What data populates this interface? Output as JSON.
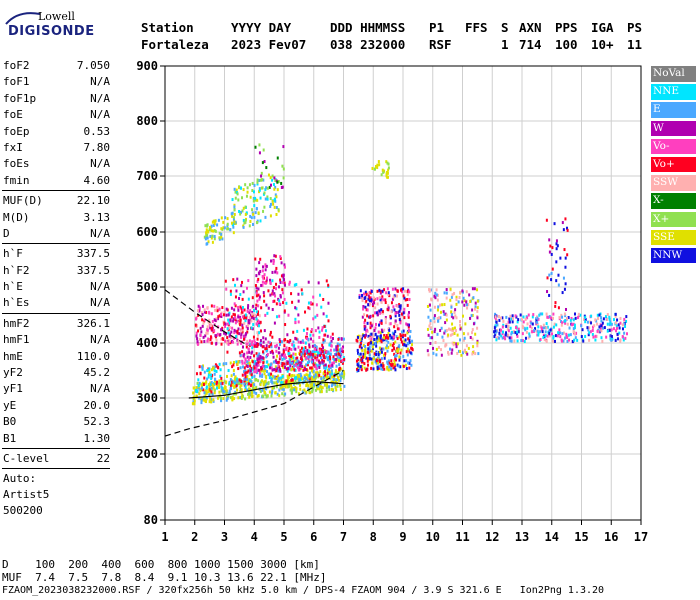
{
  "logo": {
    "top": "Lowell",
    "main": "DIGISONDE"
  },
  "header": {
    "row1": [
      "Station",
      "YYYY DAY",
      "DDD HHMMSS",
      "P1",
      "FFS",
      "S",
      "AXN",
      "PPS",
      "IGA",
      "PS"
    ],
    "row2": [
      "Fortaleza",
      "2023 Fev07",
      "038 232000",
      "RSF",
      "1",
      "714",
      "100",
      "10+",
      "11"
    ]
  },
  "params_group1": [
    {
      "label": "foF2",
      "value": "7.050"
    },
    {
      "label": "foF1",
      "value": "N/A"
    },
    {
      "label": "foF1p",
      "value": "N/A"
    },
    {
      "label": "foE",
      "value": "N/A"
    },
    {
      "label": "foEp",
      "value": "0.53"
    },
    {
      "label": "fxI",
      "value": "7.80"
    },
    {
      "label": "foEs",
      "value": "N/A"
    },
    {
      "label": "fmin",
      "value": "4.60"
    }
  ],
  "params_group2": [
    {
      "label": "MUF(D)",
      "value": "22.10"
    },
    {
      "label": "M(D)",
      "value": "3.13"
    },
    {
      "label": "D",
      "value": "N/A"
    }
  ],
  "params_group3": [
    {
      "label": "h`F",
      "value": "337.5"
    },
    {
      "label": "h`F2",
      "value": "337.5"
    },
    {
      "label": "h`E",
      "value": "N/A"
    },
    {
      "label": "h`Es",
      "value": "N/A"
    }
  ],
  "params_group4": [
    {
      "label": "hmF2",
      "value": "326.1"
    },
    {
      "label": "hmF1",
      "value": "N/A"
    },
    {
      "label": "hmE",
      "value": "110.0"
    },
    {
      "label": "yF2",
      "value": "45.2"
    },
    {
      "label": "yF1",
      "value": "N/A"
    },
    {
      "label": "yE",
      "value": "20.0"
    },
    {
      "label": "B0",
      "value": "52.3"
    },
    {
      "label": "B1",
      "value": "1.30"
    }
  ],
  "params_group5": [
    {
      "label": "C-level",
      "value": "22"
    }
  ],
  "auto": [
    "Auto:",
    "Artist5",
    "500200"
  ],
  "legend": [
    {
      "label": "NoVal",
      "color": "#808080"
    },
    {
      "label": "NNE",
      "color": "#00e5ff"
    },
    {
      "label": "E",
      "color": "#4aa8ff"
    },
    {
      "label": "W",
      "color": "#b000b0"
    },
    {
      "label": "Vo-",
      "color": "#ff3fbf"
    },
    {
      "label": "Vo+",
      "color": "#ff0020"
    },
    {
      "label": "SSW",
      "color": "#ffb0b0"
    },
    {
      "label": "X-",
      "color": "#008000"
    },
    {
      "label": "X+",
      "color": "#90e050"
    },
    {
      "label": "SSE",
      "color": "#e0e000"
    },
    {
      "label": "NNW",
      "color": "#1010e0"
    }
  ],
  "chart_data": {
    "type": "scatter",
    "xlim": [
      1,
      17
    ],
    "ylim": [
      80,
      900
    ],
    "x_ticks": [
      "1",
      "2",
      "3",
      "4",
      "5",
      "6",
      "7",
      "8",
      "9",
      "10",
      "11",
      "12",
      "13",
      "14",
      "15",
      "16",
      "17"
    ],
    "y_ticks": [
      "80",
      "200",
      "300",
      "400",
      "500",
      "600",
      "700",
      "800",
      "900"
    ],
    "profile_solid": {
      "x": [
        1.8,
        3.0,
        4.0,
        5.0,
        6.0,
        7.0
      ],
      "y": [
        300,
        305,
        315,
        325,
        330,
        326
      ]
    },
    "profile_dashed": {
      "x": [
        1.0,
        1.8,
        3.0,
        4.0,
        5.0,
        6.0,
        7.0
      ],
      "y": [
        232,
        245,
        260,
        275,
        290,
        320,
        350
      ]
    },
    "dashed_upper": {
      "x": [
        1.0,
        2.0,
        3.0,
        3.8
      ],
      "y": [
        495,
        455,
        420,
        395
      ]
    },
    "clusters": [
      {
        "x": [
          1.9,
          7.0
        ],
        "y": [
          290,
          360
        ],
        "note": "F trace low"
      },
      {
        "x": [
          3.0,
          7.0
        ],
        "y": [
          360,
          480
        ],
        "note": "F trace mid"
      },
      {
        "x": [
          2.0,
          4.0
        ],
        "y": [
          400,
          470
        ],
        "note": "magenta block"
      },
      {
        "x": [
          2.2,
          5.0
        ],
        "y": [
          570,
          690
        ],
        "note": "F2 2-hop"
      },
      {
        "x": [
          7.5,
          9.3
        ],
        "y": [
          340,
          500
        ],
        "note": "high freq F"
      },
      {
        "x": [
          10,
          11.5
        ],
        "y": [
          380,
          500
        ],
        "note": "spread"
      },
      {
        "x": [
          12.0,
          16.5
        ],
        "y": [
          400,
          460
        ],
        "note": "spread F"
      }
    ]
  },
  "footer": {
    "d_row": "D    100  200  400  600  800 1000 1500 3000 [km]",
    "muf_row": "MUF  7.4  7.5  7.8  8.4  9.1 10.3 13.6 22.1 [MHz]",
    "file_row": "FZAOM_2023038232000.RSF / 320fx256h 50 kHz 5.0 km / DPS-4 FZAOM 904 / 3.9 S 321.6 E   Ion2Png 1.3.20"
  }
}
